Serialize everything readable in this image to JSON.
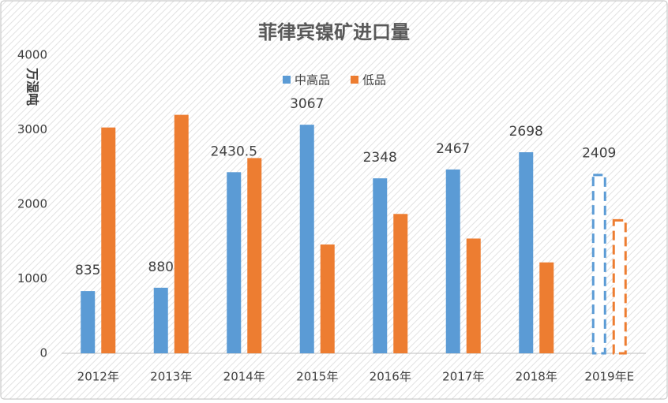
{
  "chart_data": {
    "type": "bar",
    "title": "菲律宾镍矿进口量",
    "y_label": "万湿吨",
    "categories": [
      "2012年",
      "2013年",
      "2014年",
      "2015年",
      "2016年",
      "2017年",
      "2018年",
      "2019年E"
    ],
    "series": [
      {
        "name": "中高品",
        "color": "#5b9bd5",
        "values": [
          835,
          880,
          2430.5,
          3067,
          2348,
          2467,
          2698,
          2409
        ],
        "show_labels": true
      },
      {
        "name": "低品",
        "color": "#ed7d31",
        "values": [
          3030,
          3200,
          2620,
          1460,
          1870,
          1540,
          1220,
          1800
        ],
        "show_labels": false
      }
    ],
    "dashed_categories": [
      "2019年E"
    ],
    "ylim": [
      0,
      4000
    ],
    "yticks": [
      0,
      1000,
      2000,
      3000,
      4000
    ],
    "legend": "top"
  }
}
